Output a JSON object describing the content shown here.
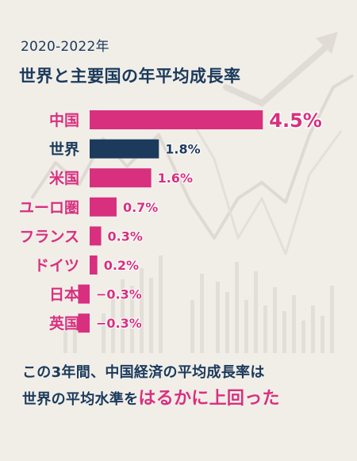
{
  "header": {
    "period": "2020-2022年",
    "title": "世界と主要国の年平均成長率"
  },
  "colors": {
    "accent": "#d8307f",
    "highlight_bar": "#1b3a5c",
    "text": "#1b3a5c",
    "background": "#f1eee8"
  },
  "chart_data": {
    "type": "bar",
    "orientation": "horizontal",
    "categories": [
      "中国",
      "世界",
      "米国",
      "ユーロ圏",
      "フランス",
      "ドイツ",
      "日本",
      "英国"
    ],
    "values": [
      4.5,
      1.8,
      1.6,
      0.7,
      0.3,
      0.2,
      -0.3,
      -0.3
    ],
    "value_labels": [
      "4.5%",
      "1.8%",
      "1.6%",
      "0.7%",
      "0.3%",
      "0.2%",
      "−0.3%",
      "−0.3%"
    ],
    "highlighted_category": "世界",
    "grid": false,
    "legend": "none"
  },
  "caption": {
    "line1": "この3年間、中国経済の平均成長率は",
    "line2_prefix": "世界の平均水準を",
    "line2_highlight": "はるかに上回った"
  }
}
